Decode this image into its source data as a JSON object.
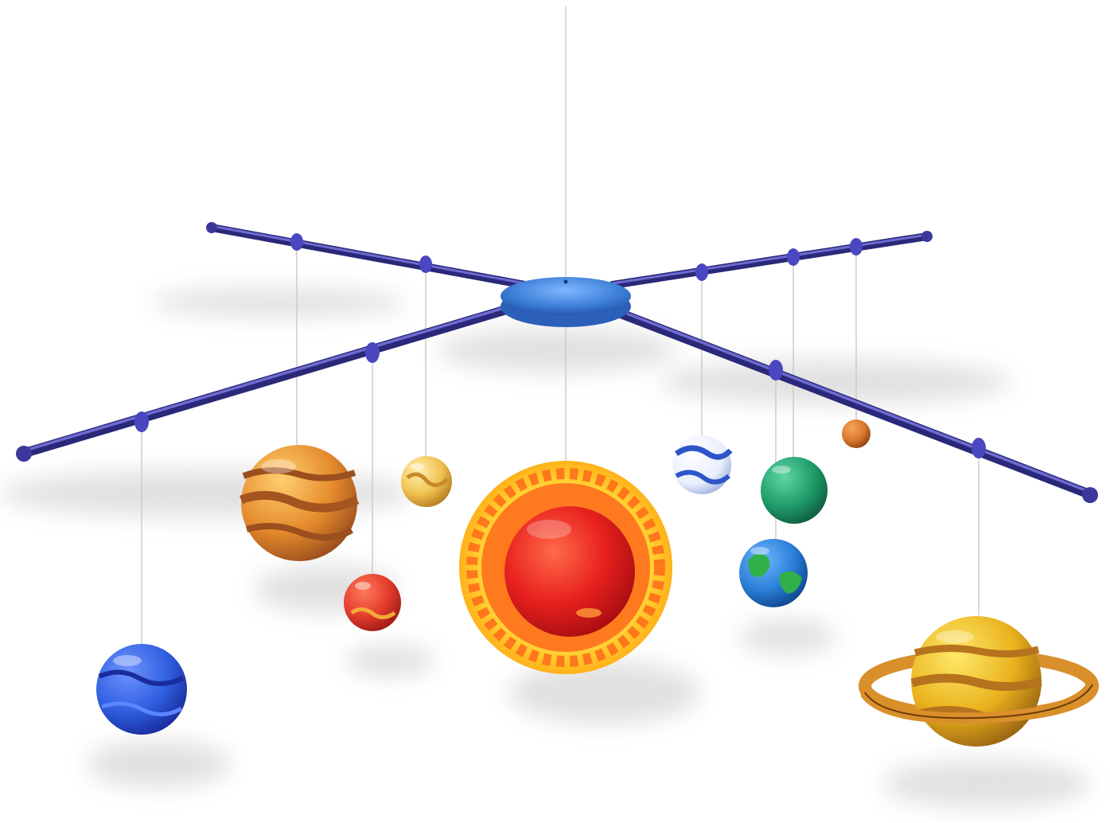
{
  "image": {
    "subject": "solar-system-mobile",
    "background_color": "#ffffff",
    "frame_color": "#4a47a3",
    "hub_color": "#3d7fd8",
    "string_color": "#c9c9c9"
  },
  "bodies": [
    {
      "id": "sun",
      "colors": [
        "#ff3b22",
        "#c8101a",
        "#ffd233"
      ]
    },
    {
      "id": "mercury",
      "colors": [
        "#d8772c",
        "#8e4316"
      ]
    },
    {
      "id": "venus",
      "colors": [
        "#f3d068",
        "#c9892a"
      ]
    },
    {
      "id": "earth",
      "colors": [
        "#2a7fd6",
        "#2fb04a"
      ]
    },
    {
      "id": "mars",
      "colors": [
        "#e23b2c",
        "#f5a83a"
      ]
    },
    {
      "id": "jupiter",
      "colors": [
        "#f0a13c",
        "#9b4f1e"
      ]
    },
    {
      "id": "saturn",
      "colors": [
        "#f2c21a",
        "#b6731e"
      ]
    },
    {
      "id": "uranus",
      "colors": [
        "#1e9c6a",
        "#0f6e48"
      ]
    },
    {
      "id": "neptune",
      "colors": [
        "#2f5fe0",
        "#1a2c9c"
      ]
    },
    {
      "id": "pluto",
      "colors": [
        "#ffffff",
        "#2b55c8"
      ]
    }
  ]
}
